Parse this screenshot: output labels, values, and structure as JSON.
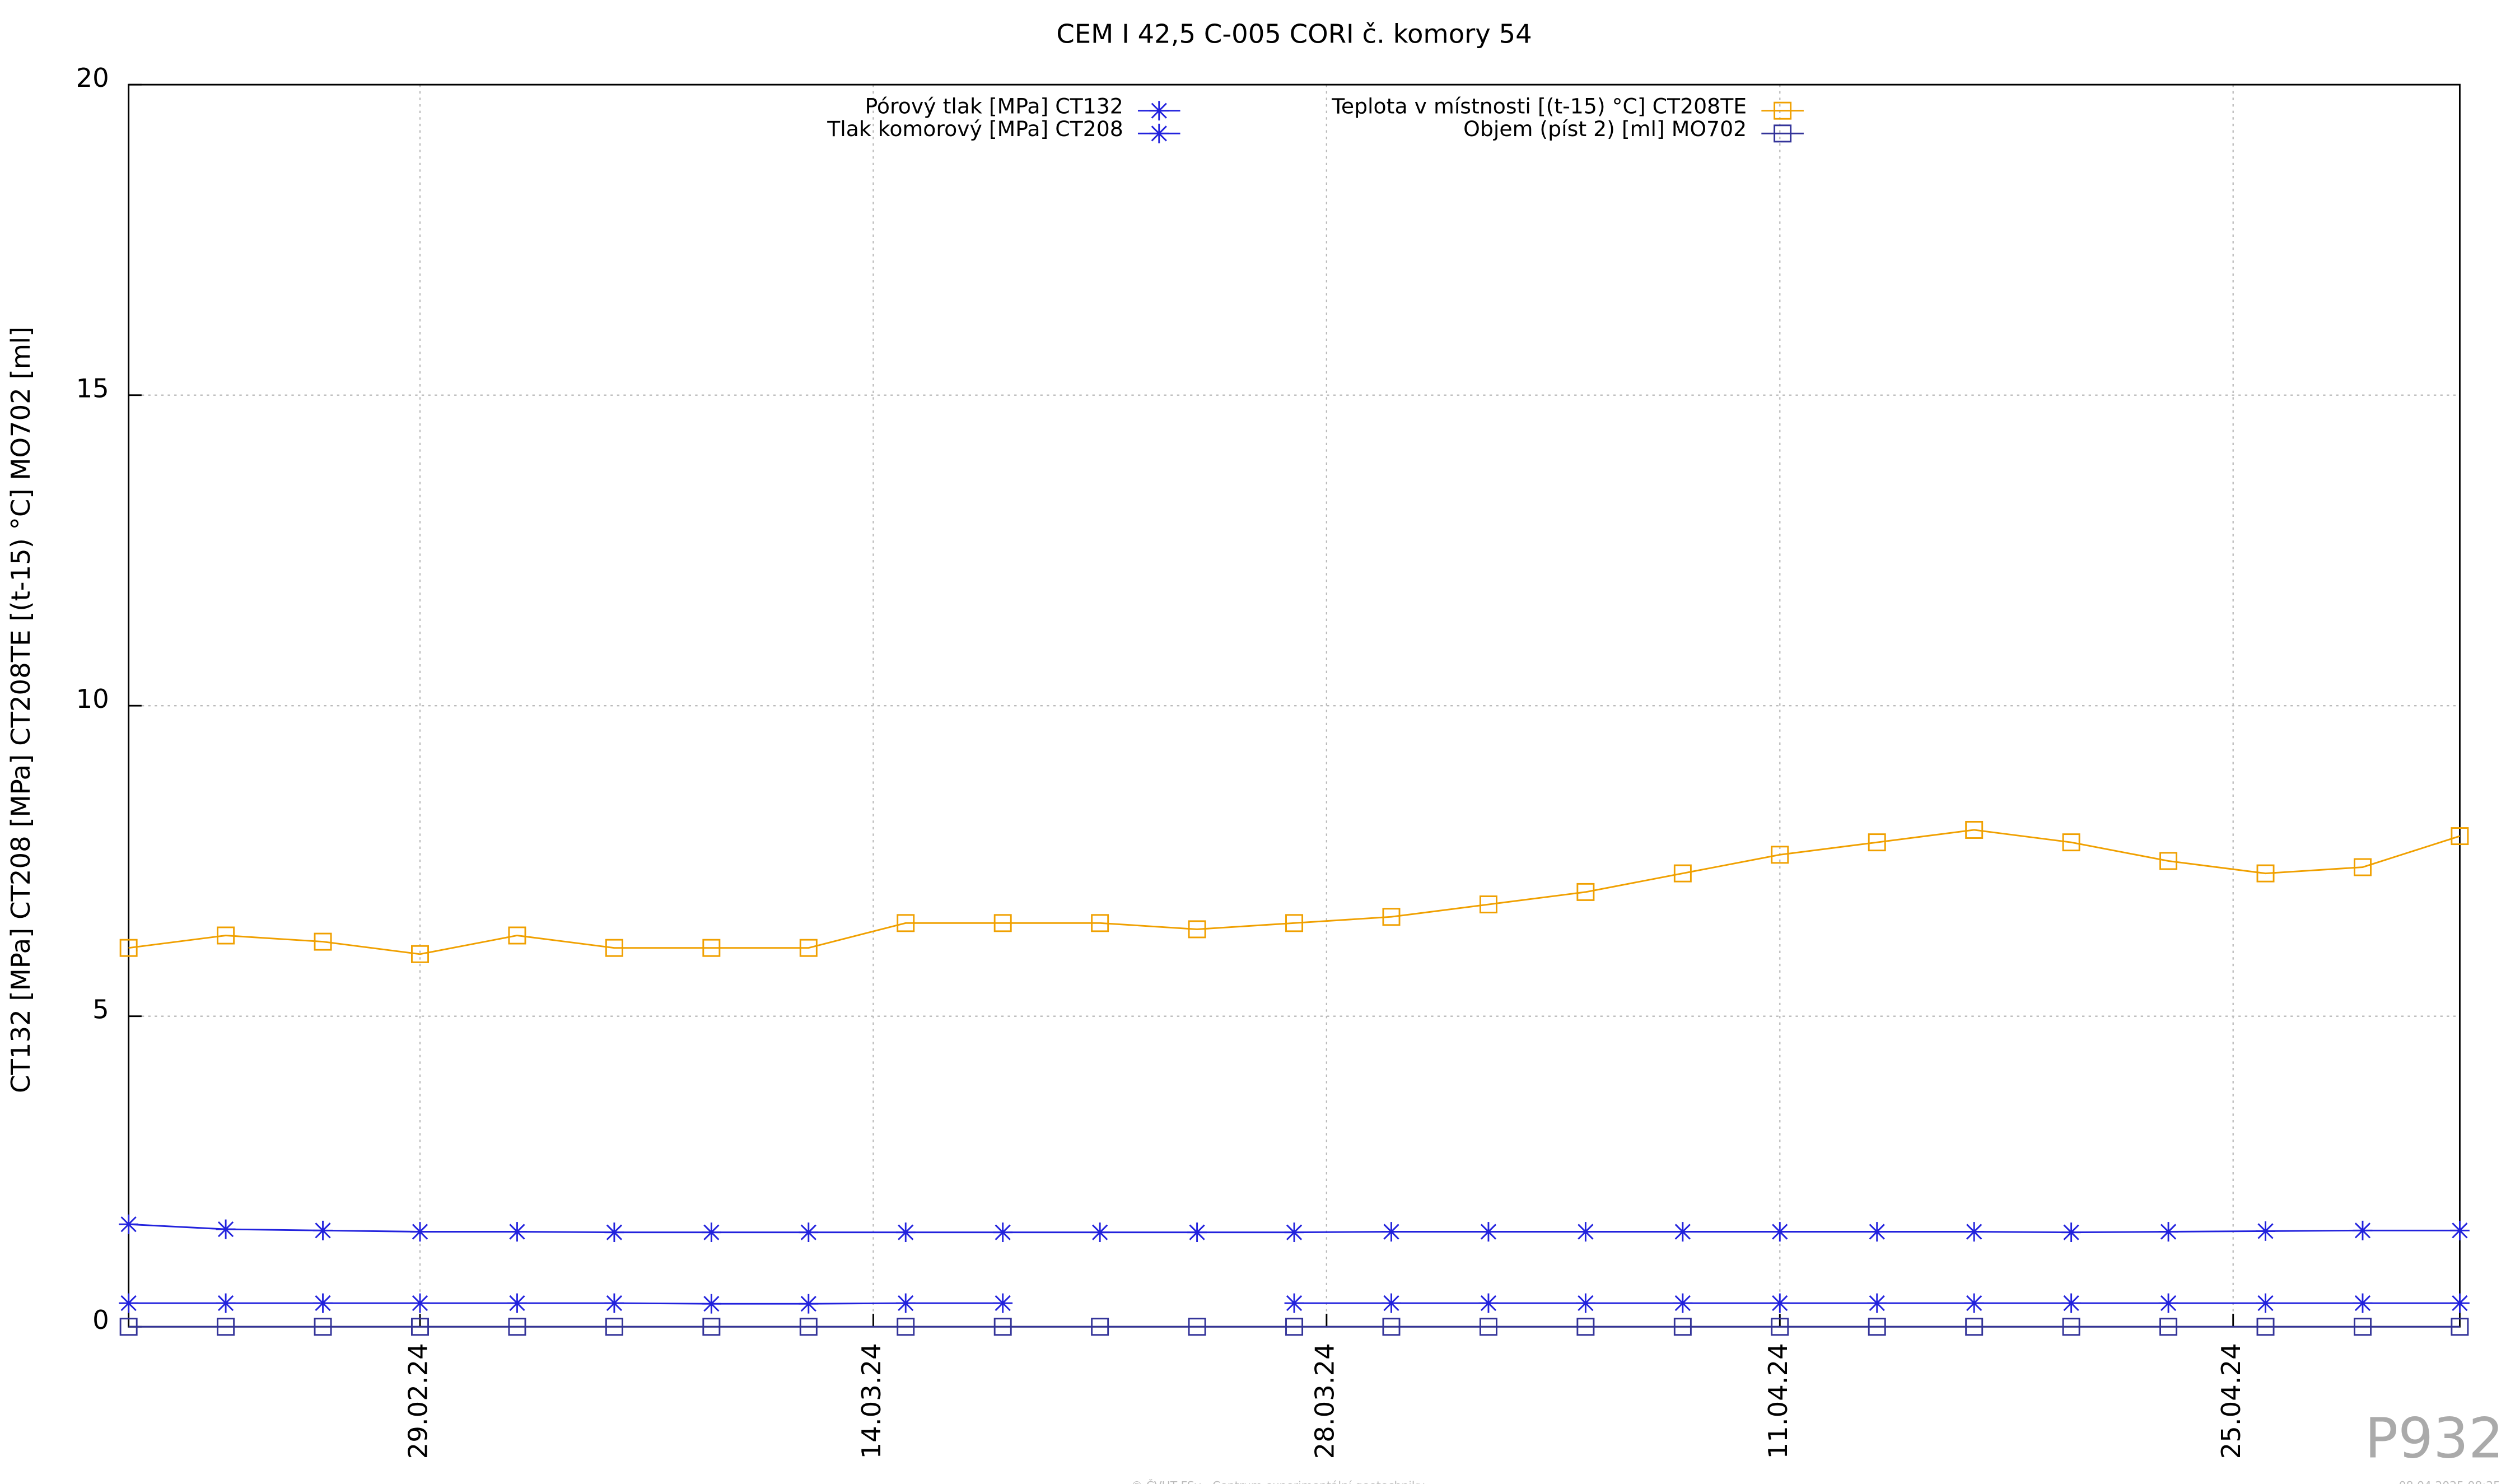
{
  "chart_data": {
    "type": "line",
    "title": "CEM I 42,5 C-005 CORI č. komory 54",
    "ylabel": "CT132 [MPa] CT208 [MPa] CT208TE [(t-15) °C] MO702 [ml]",
    "watermark": "P932",
    "footer": "© ČVUT FSv - Centrum experimentální geotechniky",
    "timestamp": "08.04.2025 08:25",
    "x": [
      "2024-02-20",
      "2024-02-23",
      "2024-02-26",
      "2024-02-29",
      "2024-03-03",
      "2024-03-06",
      "2024-03-09",
      "2024-03-12",
      "2024-03-15",
      "2024-03-18",
      "2024-03-21",
      "2024-03-24",
      "2024-03-27",
      "2024-03-30",
      "2024-04-02",
      "2024-04-05",
      "2024-04-08",
      "2024-04-11",
      "2024-04-14",
      "2024-04-17",
      "2024-04-20",
      "2024-04-23",
      "2024-04-26",
      "2024-04-29",
      "2024-05-02"
    ],
    "xlim": [
      "2024-02-20",
      "2024-05-02"
    ],
    "xticks": [
      {
        "value": "2024-02-29",
        "label": "29.02.24"
      },
      {
        "value": "2024-03-14",
        "label": "14.03.24"
      },
      {
        "value": "2024-03-28",
        "label": "28.03.24"
      },
      {
        "value": "2024-04-11",
        "label": "11.04.24"
      },
      {
        "value": "2024-04-25",
        "label": "25.04.24"
      }
    ],
    "ylim": [
      0,
      20
    ],
    "yticks": [
      0,
      5,
      10,
      15,
      20
    ],
    "grid": true,
    "series": [
      {
        "name": "Pórový tlak [MPa] CT132",
        "color": "#2222dd",
        "marker": "star",
        "values": [
          1.65,
          1.57,
          1.55,
          1.53,
          1.53,
          1.52,
          1.52,
          1.52,
          1.52,
          1.52,
          1.52,
          1.52,
          1.52,
          1.53,
          1.53,
          1.53,
          1.53,
          1.53,
          1.53,
          1.53,
          1.52,
          1.53,
          1.54,
          1.55,
          1.55
        ]
      },
      {
        "name": "Tlak komorový [MPa] CT208",
        "color": "#2222dd",
        "marker": "star",
        "values": [
          0.38,
          0.38,
          0.38,
          0.38,
          0.38,
          0.38,
          0.37,
          0.37,
          0.38,
          0.38,
          null,
          null,
          0.38,
          0.38,
          0.38,
          0.38,
          0.38,
          0.38,
          0.38,
          0.38,
          0.38,
          0.38,
          0.38,
          0.38,
          0.38
        ]
      },
      {
        "name": "Teplota v místnosti [(t-15) °C] CT208TE",
        "color": "#f0a000",
        "marker": "square",
        "values": [
          6.1,
          6.3,
          6.2,
          6.0,
          6.3,
          6.1,
          6.1,
          6.1,
          6.5,
          6.5,
          6.5,
          6.4,
          6.5,
          6.6,
          6.8,
          7.0,
          7.3,
          7.6,
          7.8,
          8.0,
          7.8,
          7.5,
          7.3,
          7.4,
          7.9
        ]
      },
      {
        "name": "Objem (píst 2) [ml] MO702",
        "color": "#333399",
        "marker": "square",
        "values": [
          0,
          0,
          0,
          0,
          0,
          0,
          0,
          0,
          0,
          0,
          0,
          0,
          0,
          0,
          0,
          0,
          0,
          0,
          0,
          0,
          0,
          0,
          0,
          0,
          0
        ]
      }
    ]
  }
}
